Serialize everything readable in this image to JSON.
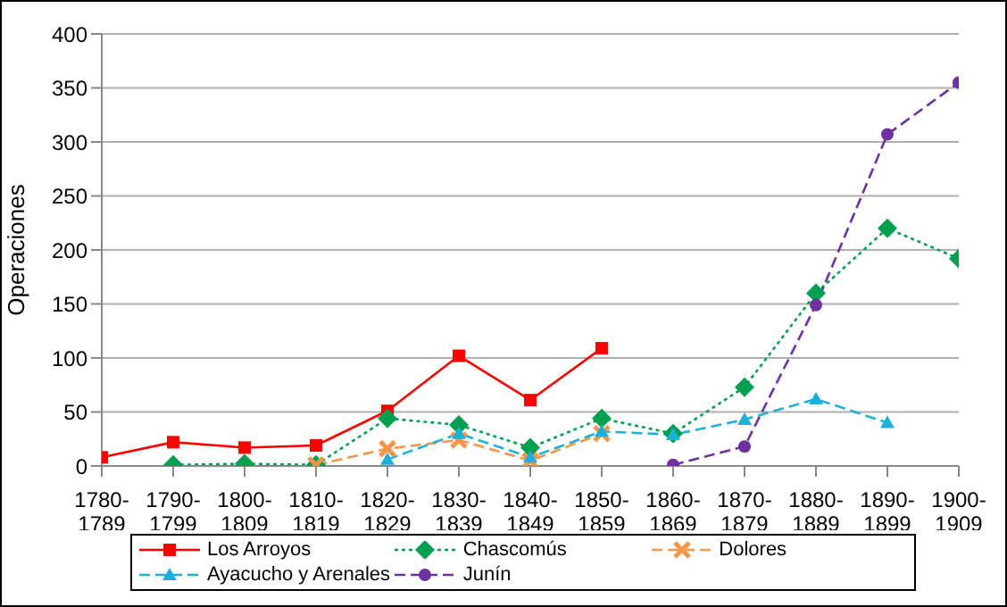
{
  "chart_data": {
    "type": "line",
    "ylabel": "Operaciones",
    "categories": [
      "1780-1789",
      "1790-1799",
      "1800-1809",
      "1810-1819",
      "1820-1829",
      "1830-1839",
      "1840-1849",
      "1850-1859",
      "1860-1869",
      "1870-1879",
      "1880-1889",
      "1890-1899",
      "1900-1909"
    ],
    "series": [
      {
        "name": "Los Arroyos",
        "color": "#ff0000",
        "marker": "square",
        "line_style": "solid",
        "values": [
          8,
          22,
          17,
          19,
          51,
          102,
          61,
          109,
          null,
          null,
          null,
          null,
          null
        ]
      },
      {
        "name": "Chascomús",
        "color": "#00a050",
        "marker": "diamond",
        "line_style": "dotted",
        "values": [
          null,
          1,
          2,
          1,
          44,
          38,
          17,
          44,
          30,
          73,
          160,
          220,
          192
        ]
      },
      {
        "name": "Dolores",
        "color": "#f79646",
        "marker": "cross",
        "line_style": "dashed",
        "values": [
          null,
          null,
          null,
          1,
          16,
          24,
          5,
          30,
          null,
          null,
          null,
          null,
          null
        ]
      },
      {
        "name": "Ayacucho y Arenales",
        "color": "#1fb0d8",
        "marker": "triangle",
        "line_style": "dashed",
        "values": [
          null,
          null,
          null,
          null,
          6,
          30,
          8,
          32,
          29,
          43,
          62,
          40,
          null
        ]
      },
      {
        "name": "Junín",
        "color": "#7030a0",
        "marker": "circle",
        "line_style": "dashed",
        "values": [
          null,
          null,
          null,
          null,
          null,
          null,
          null,
          null,
          1,
          18,
          149,
          307,
          355
        ]
      }
    ],
    "ylim": [
      0,
      400
    ],
    "yticks": [
      0,
      50,
      100,
      150,
      200,
      250,
      300,
      350,
      400
    ],
    "grid": "y",
    "legend": "bottom"
  }
}
